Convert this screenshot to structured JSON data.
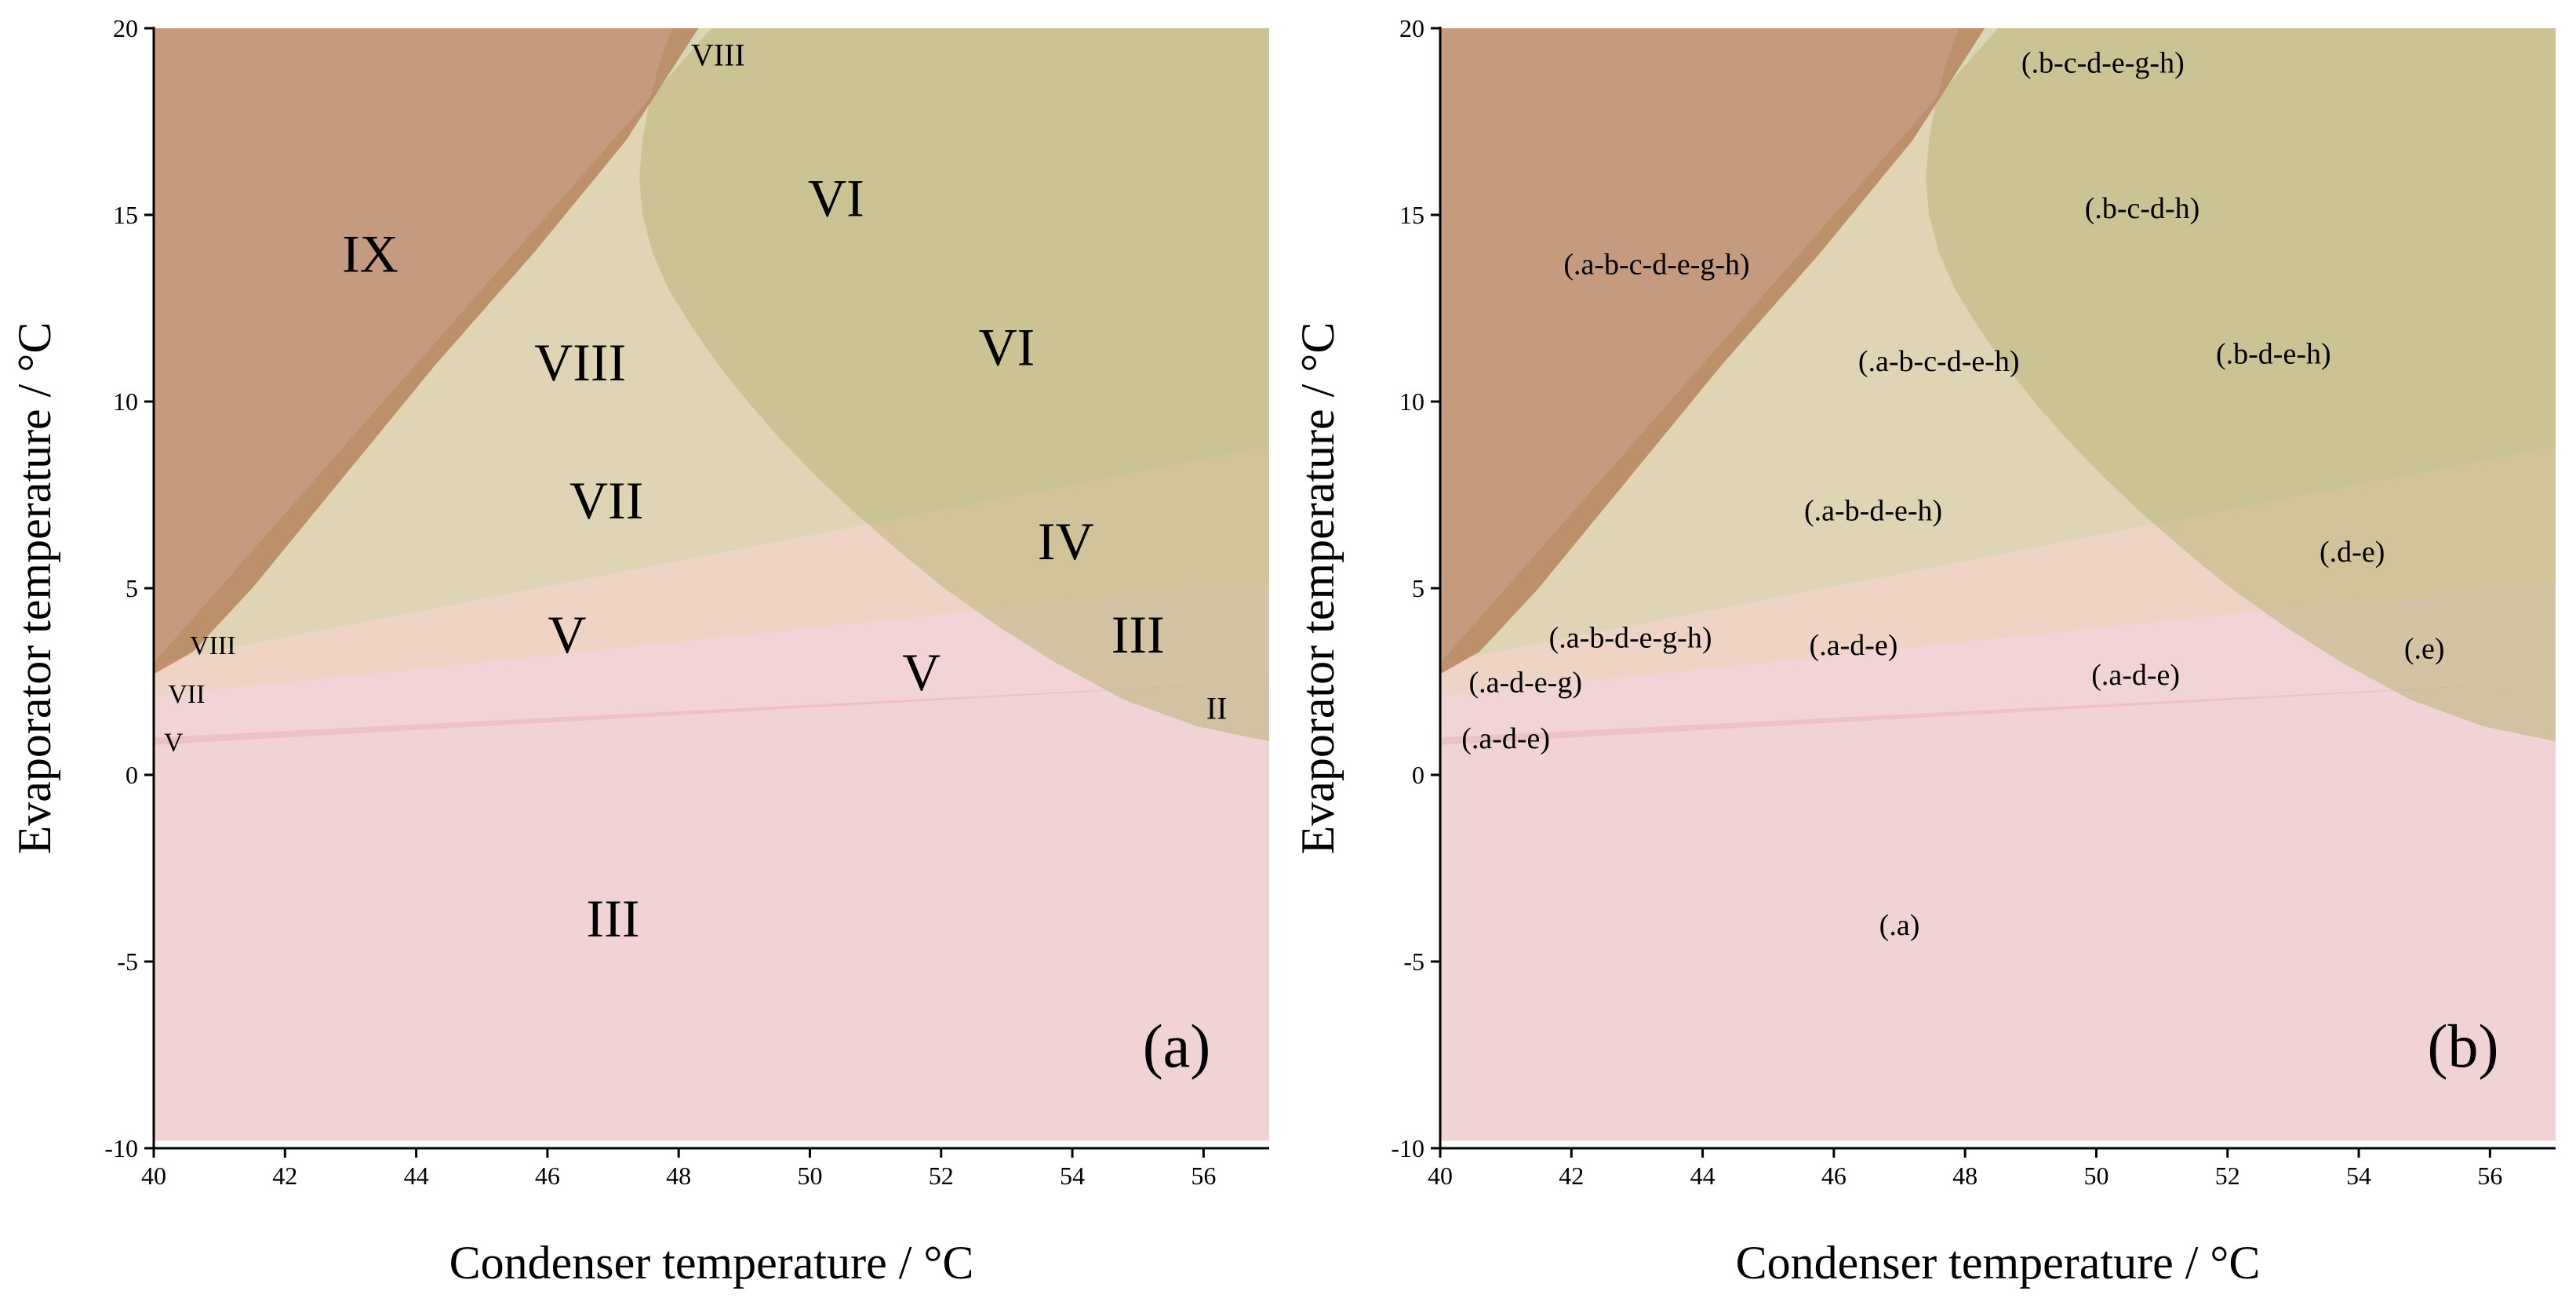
{
  "chart_data": [
    {
      "type": "area",
      "panel_label": "(a)",
      "xlabel": "Condenser temperature / °C",
      "ylabel": "Evaporator temperature / °C",
      "xlim": [
        40,
        57
      ],
      "ylim": [
        -10,
        20
      ],
      "xticks": [
        40,
        42,
        44,
        46,
        48,
        50,
        52,
        54,
        56
      ],
      "yticks": [
        -10,
        -5,
        0,
        5,
        10,
        15,
        20
      ],
      "regions": [
        {
          "name": "base",
          "color": "#efc8cb",
          "opacity": 0.8,
          "points": [
            [
              40,
              1.0
            ],
            [
              57,
              2.5
            ],
            [
              57,
              -9.8
            ],
            [
              40,
              -9.8
            ]
          ]
        },
        {
          "name": "wedge-low",
          "color": "#e9b8bb",
          "opacity": 0.6,
          "points": [
            [
              40,
              2.1
            ],
            [
              57,
              5.2
            ],
            [
              57,
              2.5
            ],
            [
              40,
              0.8
            ]
          ]
        },
        {
          "name": "wedge-mid",
          "color": "#e2b098",
          "opacity": 0.55,
          "points": [
            [
              40,
              3.0
            ],
            [
              57,
              8.8
            ],
            [
              57,
              5.2
            ],
            [
              40,
              2.1
            ]
          ]
        },
        {
          "name": "wedge-high",
          "color": "#bfa96a",
          "opacity": 0.5,
          "points": [
            [
              40,
              3.0
            ],
            [
              57,
              8.8
            ],
            [
              57,
              20
            ],
            [
              48.5,
              20
            ]
          ]
        },
        {
          "name": "curve-region",
          "color": "#b9b579",
          "opacity": 0.55,
          "points": [
            [
              47.9,
              20
            ],
            [
              47.7,
              19
            ],
            [
              47.55,
              18
            ],
            [
              47.45,
              17
            ],
            [
              47.4,
              16
            ],
            [
              47.45,
              15
            ],
            [
              47.6,
              14
            ],
            [
              47.85,
              13
            ],
            [
              48.2,
              12
            ],
            [
              48.6,
              11
            ],
            [
              49.05,
              10
            ],
            [
              49.55,
              9
            ],
            [
              50.1,
              8
            ],
            [
              50.7,
              7
            ],
            [
              51.35,
              6
            ],
            [
              52.05,
              5
            ],
            [
              52.85,
              4
            ],
            [
              53.75,
              3
            ],
            [
              54.8,
              2
            ],
            [
              55.9,
              1.3
            ],
            [
              57,
              0.9
            ],
            [
              57,
              20
            ]
          ]
        },
        {
          "name": "ix-region",
          "color": "#b07a53",
          "opacity": 0.75,
          "points": [
            [
              40,
              20
            ],
            [
              48.3,
              20
            ],
            [
              47.2,
              17
            ],
            [
              45.8,
              14
            ],
            [
              44.3,
              11
            ],
            [
              42.9,
              8
            ],
            [
              41.5,
              5
            ],
            [
              40.6,
              3.3
            ],
            [
              40,
              2.7
            ]
          ]
        }
      ],
      "labels": [
        {
          "text": "IX",
          "x": 43.3,
          "y": 13.8,
          "size": 68
        },
        {
          "text": "VIII",
          "x": 48.6,
          "y": 19.2,
          "size": 40
        },
        {
          "text": "VI",
          "x": 50.4,
          "y": 15.3,
          "size": 68
        },
        {
          "text": "VIII",
          "x": 46.5,
          "y": 10.9,
          "size": 68
        },
        {
          "text": "VI",
          "x": 53.0,
          "y": 11.3,
          "size": 68
        },
        {
          "text": "VII",
          "x": 46.9,
          "y": 7.2,
          "size": 68
        },
        {
          "text": "IV",
          "x": 53.9,
          "y": 6.1,
          "size": 68
        },
        {
          "text": "V",
          "x": 46.3,
          "y": 3.6,
          "size": 68
        },
        {
          "text": "III",
          "x": 55.0,
          "y": 3.6,
          "size": 68
        },
        {
          "text": "V",
          "x": 51.7,
          "y": 2.6,
          "size": 68
        },
        {
          "text": "VIII",
          "x": 40.9,
          "y": 3.4,
          "size": 34
        },
        {
          "text": "VII",
          "x": 40.5,
          "y": 2.1,
          "size": 34
        },
        {
          "text": "V",
          "x": 40.3,
          "y": 0.8,
          "size": 34
        },
        {
          "text": "II",
          "x": 56.2,
          "y": 1.7,
          "size": 40
        },
        {
          "text": "III",
          "x": 47.0,
          "y": -4.0,
          "size": 68
        }
      ]
    },
    {
      "type": "area",
      "panel_label": "(b)",
      "xlabel": "Condenser temperature / °C",
      "ylabel": "Evaporator temperature / °C",
      "xlim": [
        40,
        57
      ],
      "ylim": [
        -10,
        20
      ],
      "xticks": [
        40,
        42,
        44,
        46,
        48,
        50,
        52,
        54,
        56
      ],
      "yticks": [
        -10,
        -5,
        0,
        5,
        10,
        15,
        20
      ],
      "regions": [
        {
          "name": "base",
          "color": "#efc8cb",
          "opacity": 0.8,
          "points": [
            [
              40,
              1.0
            ],
            [
              57,
              2.5
            ],
            [
              57,
              0.9
            ],
            [
              55.9,
              1.3
            ],
            [
              54.8,
              2.0
            ],
            [
              54.5,
              2.2
            ],
            [
              57,
              2.5
            ],
            [
              57,
              -9.8
            ],
            [
              40,
              -9.8
            ]
          ]
        },
        {
          "name": "wedge-low",
          "color": "#e9b8bb",
          "opacity": 0.6,
          "points": [
            [
              40,
              2.1
            ],
            [
              57,
              5.2
            ],
            [
              57,
              2.5
            ],
            [
              40,
              0.8
            ]
          ]
        },
        {
          "name": "wedge-mid",
          "color": "#e2b098",
          "opacity": 0.55,
          "points": [
            [
              40,
              3.0
            ],
            [
              57,
              8.8
            ],
            [
              57,
              5.2
            ],
            [
              40,
              2.1
            ]
          ]
        },
        {
          "name": "wedge-high",
          "color": "#bfa96a",
          "opacity": 0.5,
          "points": [
            [
              40,
              3.0
            ],
            [
              57,
              8.8
            ],
            [
              57,
              20
            ],
            [
              48.5,
              20
            ]
          ]
        },
        {
          "name": "curve-region",
          "color": "#b9b579",
          "opacity": 0.55,
          "points": [
            [
              47.9,
              20
            ],
            [
              47.7,
              19
            ],
            [
              47.55,
              18
            ],
            [
              47.45,
              17
            ],
            [
              47.4,
              16
            ],
            [
              47.45,
              15
            ],
            [
              47.6,
              14
            ],
            [
              47.85,
              13
            ],
            [
              48.2,
              12
            ],
            [
              48.6,
              11
            ],
            [
              49.05,
              10
            ],
            [
              49.55,
              9
            ],
            [
              50.1,
              8
            ],
            [
              50.7,
              7
            ],
            [
              51.35,
              6
            ],
            [
              52.05,
              5
            ],
            [
              52.85,
              4
            ],
            [
              53.75,
              3
            ],
            [
              54.8,
              2
            ],
            [
              55.9,
              1.3
            ],
            [
              57,
              0.9
            ],
            [
              57,
              20
            ]
          ]
        },
        {
          "name": "ix-region",
          "color": "#b07a53",
          "opacity": 0.75,
          "points": [
            [
              40,
              20
            ],
            [
              48.3,
              20
            ],
            [
              47.2,
              17
            ],
            [
              45.8,
              14
            ],
            [
              44.3,
              11
            ],
            [
              42.9,
              8
            ],
            [
              41.5,
              5
            ],
            [
              40.6,
              3.3
            ],
            [
              40,
              2.7
            ]
          ]
        }
      ],
      "labels": [
        {
          "text": "(.b-c-d-e-g-h)",
          "x": 50.1,
          "y": 19.0,
          "size": 38
        },
        {
          "text": "(.b-c-d-h)",
          "x": 50.7,
          "y": 15.1,
          "size": 38
        },
        {
          "text": "(.a-b-c-d-e-g-h)",
          "x": 43.3,
          "y": 13.6,
          "size": 38
        },
        {
          "text": "(.a-b-c-d-e-h)",
          "x": 47.6,
          "y": 11.0,
          "size": 38
        },
        {
          "text": "(.b-d-e-h)",
          "x": 52.7,
          "y": 11.2,
          "size": 38
        },
        {
          "text": "(.a-b-d-e-h)",
          "x": 46.6,
          "y": 7.0,
          "size": 38
        },
        {
          "text": "(.d-e)",
          "x": 53.9,
          "y": 5.9,
          "size": 38
        },
        {
          "text": "(.a-b-d-e-g-h)",
          "x": 42.9,
          "y": 3.6,
          "size": 38
        },
        {
          "text": "(.a-d-e)",
          "x": 46.3,
          "y": 3.4,
          "size": 38
        },
        {
          "text": "(.e)",
          "x": 55.0,
          "y": 3.3,
          "size": 38
        },
        {
          "text": "(.a-d-e-g)",
          "x": 41.3,
          "y": 2.4,
          "size": 38
        },
        {
          "text": "(.a-d-e)",
          "x": 50.6,
          "y": 2.6,
          "size": 38
        },
        {
          "text": "(.a-d-e)",
          "x": 41.0,
          "y": 0.9,
          "size": 38
        },
        {
          "text": "(.a)",
          "x": 47.0,
          "y": -4.1,
          "size": 38
        }
      ]
    }
  ]
}
